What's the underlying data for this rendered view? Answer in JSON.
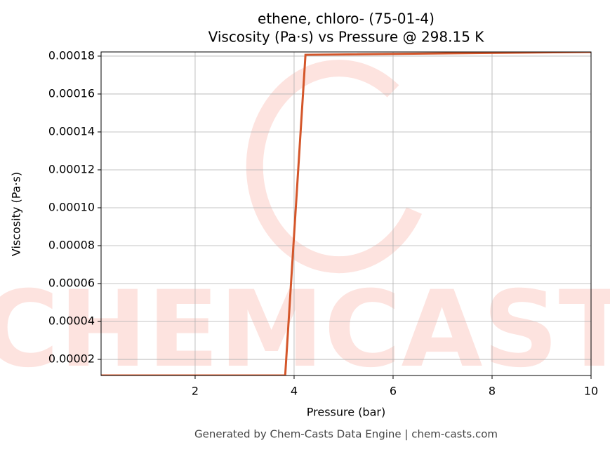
{
  "chart_data": {
    "type": "line",
    "title": "ethene, chloro- (75-01-4)",
    "subtitle": "Viscosity (Pa·s) vs Pressure @ 298.15 K",
    "x_label": "Pressure (bar)",
    "y_label": "Viscosity (Pa·s)",
    "watermark": "CHEMCASTS",
    "footer": "Generated by Chem-Casts Data Engine | chem-casts.com",
    "x": [
      0.1,
      3.82,
      4.23,
      10
    ],
    "series": [
      {
        "name": "Viscosity",
        "color": "#d4562a",
        "values": [
          1.15e-05,
          1.15e-05,
          0.0001807,
          0.0001822
        ]
      }
    ],
    "xlim": [
      0.1,
      10
    ],
    "xticks": [
      2,
      4,
      6,
      8,
      10
    ],
    "ylim": [
      1.15e-05,
      0.0001822
    ],
    "yticks": [
      2e-05,
      4e-05,
      6e-05,
      8e-05,
      {
        "value": 0.0001,
        "label": "0.00010"
      },
      0.00012,
      0.00014,
      0.00016,
      0.00018
    ],
    "grid": true
  }
}
